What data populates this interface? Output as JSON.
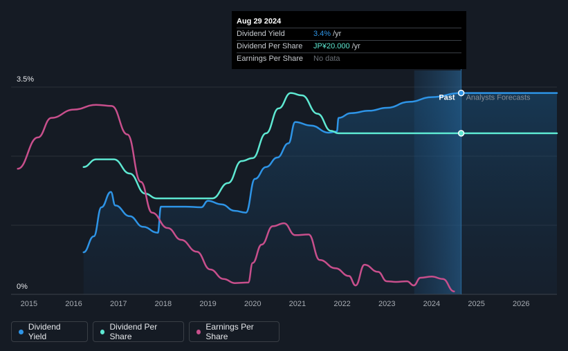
{
  "tooltip": {
    "date": "Aug 29 2024",
    "rows": [
      {
        "label": "Dividend Yield",
        "value": "3.4%",
        "unit": "/yr"
      },
      {
        "label": "Dividend Per Share",
        "value": "JP¥20.000",
        "unit": "/yr"
      },
      {
        "label": "Earnings Per Share",
        "value": "No data"
      }
    ]
  },
  "labels": {
    "past": "Past",
    "forecast": "Analysts Forecasts"
  },
  "legend": [
    {
      "label": "Dividend Yield",
      "color": "#2e94e6"
    },
    {
      "label": "Dividend Per Share",
      "color": "#5ee8d2"
    },
    {
      "label": "Earnings Per Share",
      "color": "#c84f8c"
    }
  ],
  "chart_data": {
    "type": "line",
    "x_ticks": [
      "2015",
      "2016",
      "2017",
      "2018",
      "2019",
      "2020",
      "2021",
      "2022",
      "2023",
      "2024",
      "2025",
      "2026"
    ],
    "y_ticks": [
      "0%",
      "3.5%"
    ],
    "xlim": [
      2014.6,
      2026.8
    ],
    "ylim": [
      0,
      3.5
    ],
    "past_end": 2024.66,
    "series": [
      {
        "name": "Dividend Yield",
        "color": "#2e94e6",
        "fill": true,
        "points": [
          [
            2016.22,
            0.71
          ],
          [
            2016.45,
            0.98
          ],
          [
            2016.62,
            1.47
          ],
          [
            2016.83,
            1.73
          ],
          [
            2016.93,
            1.5
          ],
          [
            2017.25,
            1.32
          ],
          [
            2017.55,
            1.14
          ],
          [
            2017.88,
            1.04
          ],
          [
            2017.95,
            1.48
          ],
          [
            2018.5,
            1.48
          ],
          [
            2018.85,
            1.47
          ],
          [
            2019.0,
            1.58
          ],
          [
            2019.3,
            1.52
          ],
          [
            2019.6,
            1.41
          ],
          [
            2019.85,
            1.38
          ],
          [
            2020.05,
            1.95
          ],
          [
            2020.3,
            2.15
          ],
          [
            2020.55,
            2.31
          ],
          [
            2020.8,
            2.55
          ],
          [
            2020.95,
            2.91
          ],
          [
            2021.3,
            2.85
          ],
          [
            2021.7,
            2.73
          ],
          [
            2021.88,
            2.75
          ],
          [
            2021.92,
            2.98
          ],
          [
            2022.2,
            3.06
          ],
          [
            2022.6,
            3.1
          ],
          [
            2023.0,
            3.15
          ],
          [
            2023.5,
            3.25
          ],
          [
            2024.0,
            3.33
          ],
          [
            2024.66,
            3.4
          ],
          [
            2026.8,
            3.4
          ]
        ]
      },
      {
        "name": "Dividend Per Share",
        "color": "#5ee8d2",
        "fill": false,
        "points": [
          [
            2016.22,
            2.15
          ],
          [
            2016.5,
            2.28
          ],
          [
            2016.9,
            2.28
          ],
          [
            2017.25,
            2.04
          ],
          [
            2017.6,
            1.7
          ],
          [
            2017.85,
            1.62
          ],
          [
            2019.1,
            1.62
          ],
          [
            2019.45,
            1.88
          ],
          [
            2019.75,
            2.25
          ],
          [
            2020.0,
            2.3
          ],
          [
            2020.3,
            2.72
          ],
          [
            2020.58,
            3.14
          ],
          [
            2020.85,
            3.4
          ],
          [
            2021.1,
            3.36
          ],
          [
            2021.45,
            3.05
          ],
          [
            2021.75,
            2.76
          ],
          [
            2021.92,
            2.72
          ],
          [
            2024.66,
            2.72
          ],
          [
            2026.8,
            2.72
          ]
        ]
      },
      {
        "name": "Earnings Per Share",
        "color": "#c84f8c",
        "fill": false,
        "points": [
          [
            2014.75,
            2.12
          ],
          [
            2015.2,
            2.65
          ],
          [
            2015.5,
            2.98
          ],
          [
            2016.0,
            3.12
          ],
          [
            2016.5,
            3.2
          ],
          [
            2016.85,
            3.18
          ],
          [
            2017.2,
            2.7
          ],
          [
            2017.5,
            1.9
          ],
          [
            2017.75,
            1.38
          ],
          [
            2018.1,
            1.12
          ],
          [
            2018.4,
            0.92
          ],
          [
            2018.75,
            0.72
          ],
          [
            2019.05,
            0.42
          ],
          [
            2019.35,
            0.26
          ],
          [
            2019.6,
            0.19
          ],
          [
            2019.9,
            0.2
          ],
          [
            2020.0,
            0.53
          ],
          [
            2020.2,
            0.84
          ],
          [
            2020.45,
            1.15
          ],
          [
            2020.7,
            1.2
          ],
          [
            2020.95,
            1.0
          ],
          [
            2021.25,
            1.01
          ],
          [
            2021.5,
            0.58
          ],
          [
            2021.85,
            0.44
          ],
          [
            2022.15,
            0.31
          ],
          [
            2022.3,
            0.15
          ],
          [
            2022.5,
            0.5
          ],
          [
            2022.8,
            0.38
          ],
          [
            2023.0,
            0.22
          ],
          [
            2023.2,
            0.21
          ],
          [
            2023.45,
            0.22
          ],
          [
            2023.6,
            0.15
          ],
          [
            2023.75,
            0.28
          ],
          [
            2024.0,
            0.3
          ],
          [
            2024.25,
            0.26
          ],
          [
            2024.5,
            0.05
          ]
        ]
      }
    ]
  }
}
